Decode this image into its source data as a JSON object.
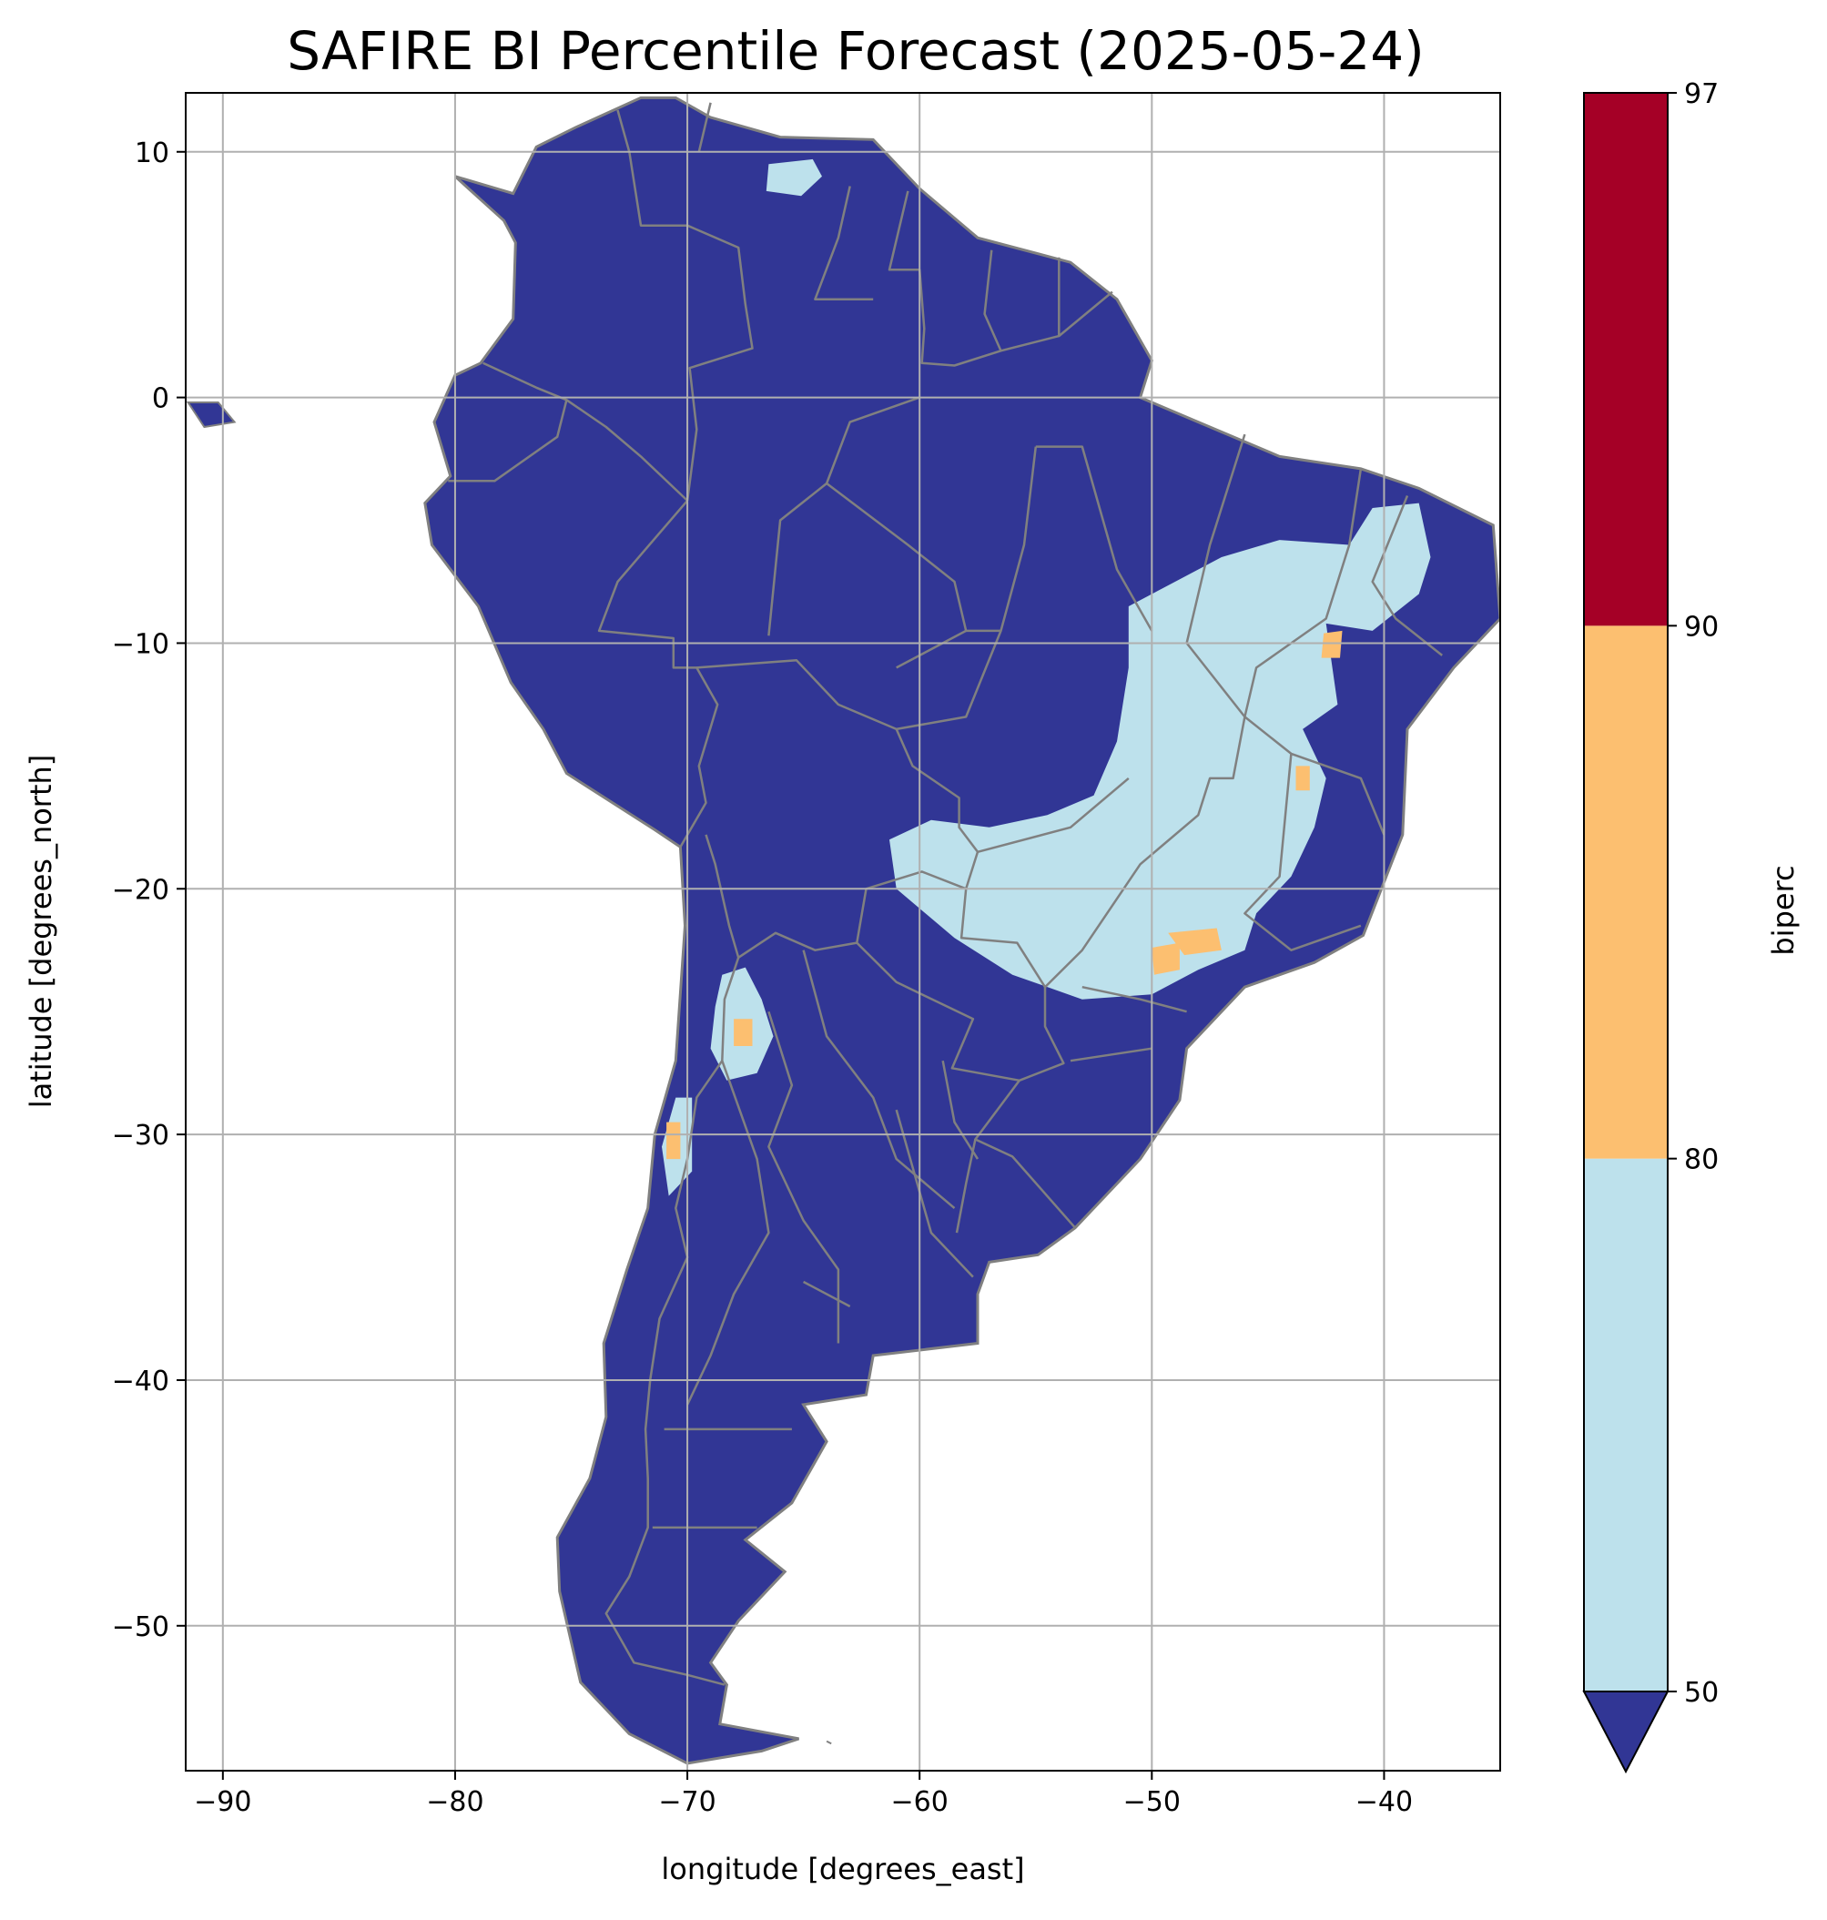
{
  "title": "SAFIRE BI Percentile Forecast (2025-05-24)",
  "x_axis": {
    "label": "longitude [degrees_east]",
    "ticks": [
      -90,
      -80,
      -70,
      -60,
      -50,
      -40
    ],
    "tick_labels": [
      "−90",
      "−80",
      "−70",
      "−60",
      "−50",
      "−40"
    ],
    "range": [
      -91.6,
      -35.0
    ]
  },
  "y_axis": {
    "label": "latitude [degrees_north]",
    "ticks": [
      10,
      0,
      -10,
      -20,
      -30,
      -40,
      -50
    ],
    "tick_labels": [
      "10",
      "0",
      "−10",
      "−20",
      "−30",
      "−40",
      "−50"
    ],
    "range": [
      -55.9,
      12.4
    ]
  },
  "grid": true,
  "colorbar": {
    "label": "biperc",
    "placement": "right",
    "extend": "min",
    "bins": [
      {
        "from": 50,
        "to": 80,
        "color": "#bde1ec"
      },
      {
        "from": 80,
        "to": 90,
        "color": "#fcbf70"
      },
      {
        "from": 90,
        "to": 97,
        "color": "#a50026"
      }
    ],
    "under_color": "#313695",
    "tick_labels": [
      "50",
      "80",
      "90",
      "97"
    ]
  },
  "colors": {
    "land_base": "#313695",
    "border": "#808080",
    "grid": "#b0b0b0"
  },
  "regions": {
    "continent": [
      [
        -80.0,
        9.0
      ],
      [
        -77.5,
        8.3
      ],
      [
        -76.5,
        10.2
      ],
      [
        -74.8,
        11.0
      ],
      [
        -72.0,
        12.2
      ],
      [
        -70.5,
        12.2
      ],
      [
        -69.0,
        11.4
      ],
      [
        -66.0,
        10.6
      ],
      [
        -62.0,
        10.5
      ],
      [
        -60.0,
        8.5
      ],
      [
        -57.5,
        6.5
      ],
      [
        -53.5,
        5.5
      ],
      [
        -51.5,
        4.0
      ],
      [
        -50.0,
        1.5
      ],
      [
        -50.5,
        0.0
      ],
      [
        -48.0,
        -1.0
      ],
      [
        -44.5,
        -2.4
      ],
      [
        -41.0,
        -2.9
      ],
      [
        -38.5,
        -3.7
      ],
      [
        -35.3,
        -5.2
      ],
      [
        -35.0,
        -9.0
      ],
      [
        -37.0,
        -11.0
      ],
      [
        -39.0,
        -13.5
      ],
      [
        -39.2,
        -17.8
      ],
      [
        -40.9,
        -21.9
      ],
      [
        -43.0,
        -23.0
      ],
      [
        -46.0,
        -24.0
      ],
      [
        -48.5,
        -26.5
      ],
      [
        -48.8,
        -28.6
      ],
      [
        -50.5,
        -31.0
      ],
      [
        -53.3,
        -33.8
      ],
      [
        -54.9,
        -34.9
      ],
      [
        -57.0,
        -35.2
      ],
      [
        -57.5,
        -36.5
      ],
      [
        -57.5,
        -38.5
      ],
      [
        -62.0,
        -39.0
      ],
      [
        -62.3,
        -40.6
      ],
      [
        -65.0,
        -41.0
      ],
      [
        -64.0,
        -42.5
      ],
      [
        -65.5,
        -45.0
      ],
      [
        -67.5,
        -46.5
      ],
      [
        -65.8,
        -47.8
      ],
      [
        -67.8,
        -49.8
      ],
      [
        -69.0,
        -51.5
      ],
      [
        -68.3,
        -52.4
      ],
      [
        -68.6,
        -54.0
      ],
      [
        -65.2,
        -54.6
      ],
      [
        -66.8,
        -55.1
      ],
      [
        -70.0,
        -55.6
      ],
      [
        -72.5,
        -54.4
      ],
      [
        -74.6,
        -52.3
      ],
      [
        -75.5,
        -48.6
      ],
      [
        -75.6,
        -46.4
      ],
      [
        -74.2,
        -44.0
      ],
      [
        -73.5,
        -41.5
      ],
      [
        -73.6,
        -38.5
      ],
      [
        -72.6,
        -35.5
      ],
      [
        -71.7,
        -33.0
      ],
      [
        -71.4,
        -30.0
      ],
      [
        -70.5,
        -27.0
      ],
      [
        -70.1,
        -21.5
      ],
      [
        -70.3,
        -18.3
      ],
      [
        -71.4,
        -17.6
      ],
      [
        -75.2,
        -15.3
      ],
      [
        -76.2,
        -13.5
      ],
      [
        -77.6,
        -11.6
      ],
      [
        -79.0,
        -8.5
      ],
      [
        -81.0,
        -6.0
      ],
      [
        -81.3,
        -4.3
      ],
      [
        -80.2,
        -3.2
      ],
      [
        -80.9,
        -1.0
      ],
      [
        -80.0,
        0.9
      ],
      [
        -78.9,
        1.4
      ],
      [
        -77.5,
        3.2
      ],
      [
        -77.4,
        6.3
      ],
      [
        -77.9,
        7.2
      ]
    ],
    "light_patches": [
      [
        [
          -66.5,
          9.5
        ],
        [
          -64.6,
          9.7
        ],
        [
          -64.2,
          9.0
        ],
        [
          -65.1,
          8.2
        ],
        [
          -66.6,
          8.4
        ]
      ],
      [
        [
          -51.0,
          -8.5
        ],
        [
          -47.0,
          -6.5
        ],
        [
          -44.5,
          -5.8
        ],
        [
          -41.5,
          -6.0
        ],
        [
          -40.5,
          -4.5
        ],
        [
          -38.5,
          -4.3
        ],
        [
          -38.0,
          -6.5
        ],
        [
          -38.5,
          -8.0
        ],
        [
          -40.5,
          -9.5
        ],
        [
          -42.5,
          -9.2
        ],
        [
          -42.0,
          -12.5
        ],
        [
          -43.5,
          -13.5
        ],
        [
          -42.5,
          -15.5
        ],
        [
          -43.0,
          -17.5
        ],
        [
          -44.0,
          -19.5
        ],
        [
          -45.5,
          -21.0
        ],
        [
          -46.0,
          -22.5
        ],
        [
          -48.0,
          -23.3
        ],
        [
          -50.0,
          -24.3
        ],
        [
          -53.0,
          -24.5
        ],
        [
          -56.0,
          -23.5
        ],
        [
          -58.5,
          -22.0
        ],
        [
          -61.0,
          -20.0
        ],
        [
          -61.3,
          -18.0
        ],
        [
          -59.5,
          -17.2
        ],
        [
          -57.0,
          -17.5
        ],
        [
          -54.5,
          -17.0
        ],
        [
          -52.5,
          -16.2
        ],
        [
          -51.5,
          -14.0
        ],
        [
          -51.0,
          -11.0
        ]
      ],
      [
        [
          -68.5,
          -23.5
        ],
        [
          -67.5,
          -23.2
        ],
        [
          -66.8,
          -24.5
        ],
        [
          -66.3,
          -26.0
        ],
        [
          -67.0,
          -27.5
        ],
        [
          -68.3,
          -27.8
        ],
        [
          -69.0,
          -26.5
        ],
        [
          -68.8,
          -24.8
        ]
      ],
      [
        [
          -70.5,
          -28.5
        ],
        [
          -69.8,
          -28.5
        ],
        [
          -69.8,
          -31.5
        ],
        [
          -70.8,
          -32.5
        ],
        [
          -71.1,
          -30.5
        ]
      ]
    ],
    "orange_patches": [
      [
        [
          -49.3,
          -21.8
        ],
        [
          -47.2,
          -21.6
        ],
        [
          -47.0,
          -22.5
        ],
        [
          -48.6,
          -22.7
        ]
      ],
      [
        [
          -50.0,
          -22.4
        ],
        [
          -48.8,
          -22.2
        ],
        [
          -48.8,
          -23.3
        ],
        [
          -49.9,
          -23.5
        ]
      ],
      [
        [
          -42.6,
          -9.6
        ],
        [
          -41.8,
          -9.5
        ],
        [
          -41.9,
          -10.6
        ],
        [
          -42.7,
          -10.6
        ]
      ],
      [
        [
          -43.8,
          -15.0
        ],
        [
          -43.2,
          -15.0
        ],
        [
          -43.2,
          -16.0
        ],
        [
          -43.8,
          -16.0
        ]
      ],
      [
        [
          -68.0,
          -25.3
        ],
        [
          -67.2,
          -25.3
        ],
        [
          -67.2,
          -26.4
        ],
        [
          -68.0,
          -26.4
        ]
      ],
      [
        [
          -70.9,
          -29.5
        ],
        [
          -70.3,
          -29.5
        ],
        [
          -70.3,
          -31.0
        ],
        [
          -70.9,
          -31.0
        ]
      ]
    ],
    "borders": [
      [
        [
          -73.0,
          11.7
        ],
        [
          -72.5,
          10.0
        ],
        [
          -72.0,
          7.0
        ],
        [
          -70.0,
          7.0
        ],
        [
          -67.8,
          6.1
        ],
        [
          -67.5,
          3.8
        ],
        [
          -67.2,
          2.0
        ],
        [
          -69.9,
          1.2
        ],
        [
          -69.6,
          -1.3
        ],
        [
          -70.0,
          -4.2
        ]
      ],
      [
        [
          -60.5,
          8.4
        ],
        [
          -61.3,
          5.2
        ],
        [
          -60.0,
          5.2
        ],
        [
          -59.8,
          2.8
        ],
        [
          -59.9,
          1.4
        ],
        [
          -58.5,
          1.3
        ],
        [
          -56.5,
          1.9
        ],
        [
          -54.0,
          2.5
        ],
        [
          -51.7,
          4.3
        ]
      ],
      [
        [
          -56.9,
          6.0
        ],
        [
          -57.2,
          3.4
        ],
        [
          -56.5,
          1.9
        ]
      ],
      [
        [
          -54.0,
          5.7
        ],
        [
          -54.0,
          2.5
        ]
      ],
      [
        [
          -70.0,
          -4.2
        ],
        [
          -73.0,
          -7.5
        ],
        [
          -73.8,
          -9.5
        ],
        [
          -70.6,
          -9.8
        ],
        [
          -70.6,
          -11.0
        ],
        [
          -69.6,
          -11.0
        ],
        [
          -68.7,
          -12.5
        ],
        [
          -69.5,
          -15.0
        ],
        [
          -69.2,
          -16.5
        ],
        [
          -70.3,
          -18.3
        ]
      ],
      [
        [
          -69.6,
          -11.0
        ],
        [
          -65.3,
          -10.7
        ],
        [
          -63.5,
          -12.5
        ],
        [
          -61.0,
          -13.5
        ],
        [
          -60.3,
          -15.0
        ],
        [
          -58.3,
          -16.3
        ],
        [
          -58.3,
          -17.5
        ],
        [
          -57.5,
          -18.5
        ],
        [
          -58.0,
          -20.0
        ]
      ],
      [
        [
          -58.0,
          -20.0
        ],
        [
          -59.9,
          -19.3
        ],
        [
          -62.3,
          -20.0
        ],
        [
          -62.7,
          -22.2
        ],
        [
          -64.5,
          -22.5
        ],
        [
          -66.2,
          -21.8
        ],
        [
          -67.8,
          -22.8
        ],
        [
          -68.2,
          -21.5
        ],
        [
          -68.8,
          -19.0
        ],
        [
          -69.2,
          -17.8
        ]
      ],
      [
        [
          -58.0,
          -20.0
        ],
        [
          -58.2,
          -22.0
        ],
        [
          -55.8,
          -22.2
        ],
        [
          -54.6,
          -24.0
        ],
        [
          -54.6,
          -25.6
        ],
        [
          -53.8,
          -27.1
        ],
        [
          -55.7,
          -27.8
        ],
        [
          -57.6,
          -30.2
        ],
        [
          -56.0,
          -30.9
        ],
        [
          -53.3,
          -33.8
        ]
      ],
      [
        [
          -57.6,
          -30.2
        ],
        [
          -58.0,
          -32.0
        ],
        [
          -58.4,
          -34.0
        ]
      ],
      [
        [
          -62.7,
          -22.2
        ],
        [
          -61.0,
          -23.8
        ],
        [
          -57.7,
          -25.3
        ],
        [
          -58.6,
          -27.3
        ],
        [
          -55.7,
          -27.8
        ]
      ],
      [
        [
          -67.8,
          -22.8
        ],
        [
          -68.4,
          -24.5
        ],
        [
          -68.5,
          -27.0
        ],
        [
          -69.6,
          -28.5
        ],
        [
          -70.0,
          -31.0
        ],
        [
          -70.5,
          -33.0
        ],
        [
          -70.0,
          -35.0
        ],
        [
          -71.2,
          -37.5
        ],
        [
          -71.6,
          -40.0
        ],
        [
          -71.8,
          -42.0
        ],
        [
          -71.7,
          -44.0
        ],
        [
          -71.7,
          -46.0
        ],
        [
          -72.5,
          -48.0
        ],
        [
          -73.5,
          -49.5
        ],
        [
          -72.3,
          -51.5
        ],
        [
          -70.0,
          -52.0
        ],
        [
          -68.4,
          -52.4
        ]
      ],
      [
        [
          -75.2,
          -0.1
        ],
        [
          -73.5,
          -1.2
        ],
        [
          -72.0,
          -2.4
        ],
        [
          -70.0,
          -4.2
        ]
      ],
      [
        [
          -78.8,
          1.4
        ],
        [
          -76.5,
          0.4
        ],
        [
          -75.2,
          -0.1
        ],
        [
          -75.6,
          -1.6
        ],
        [
          -78.3,
          -3.4
        ],
        [
          -80.3,
          -3.4
        ]
      ],
      [
        [
          -69.0,
          12.0
        ],
        [
          -69.5,
          10.0
        ]
      ],
      [
        [
          -63.0,
          8.6
        ],
        [
          -63.5,
          6.5
        ],
        [
          -64.5,
          4.0
        ],
        [
          -62.0,
          4.0
        ]
      ],
      [
        [
          -60.0,
          0.0
        ],
        [
          -63.0,
          -1.0
        ],
        [
          -64.0,
          -3.5
        ],
        [
          -60.5,
          -6.0
        ],
        [
          -58.5,
          -7.5
        ],
        [
          -58.0,
          -9.5
        ],
        [
          -61.0,
          -11.0
        ]
      ],
      [
        [
          -66.5,
          -9.7
        ],
        [
          -66.0,
          -5.0
        ],
        [
          -64.0,
          -3.5
        ]
      ],
      [
        [
          -55.0,
          -2.0
        ],
        [
          -55.5,
          -6.0
        ],
        [
          -56.5,
          -9.5
        ],
        [
          -58.0,
          -9.5
        ]
      ],
      [
        [
          -50.0,
          -9.5
        ],
        [
          -51.5,
          -7.0
        ],
        [
          -53.0,
          -2.0
        ],
        [
          -55.0,
          -2.0
        ]
      ],
      [
        [
          -46.0,
          -1.5
        ],
        [
          -47.5,
          -6.0
        ],
        [
          -48.5,
          -10.0
        ],
        [
          -46.0,
          -13.0
        ],
        [
          -46.5,
          -15.5
        ],
        [
          -47.5,
          -15.5
        ],
        [
          -48.0,
          -17.0
        ],
        [
          -50.5,
          -19.0
        ],
        [
          -53.0,
          -22.5
        ],
        [
          -54.6,
          -24.0
        ]
      ],
      [
        [
          -51.0,
          -15.5
        ],
        [
          -53.5,
          -17.5
        ],
        [
          -57.5,
          -18.5
        ]
      ],
      [
        [
          -56.5,
          -9.5
        ],
        [
          -58.0,
          -13.0
        ],
        [
          -61.0,
          -13.5
        ]
      ],
      [
        [
          -41.0,
          -2.9
        ],
        [
          -41.5,
          -6.0
        ],
        [
          -42.5,
          -9.0
        ],
        [
          -45.5,
          -11.0
        ],
        [
          -46.0,
          -13.0
        ]
      ],
      [
        [
          -39.0,
          -4.0
        ],
        [
          -40.5,
          -7.5
        ],
        [
          -39.5,
          -9.0
        ],
        [
          -37.5,
          -10.5
        ]
      ],
      [
        [
          -46.0,
          -13.0
        ],
        [
          -44.0,
          -14.5
        ],
        [
          -41.0,
          -15.5
        ],
        [
          -40.0,
          -17.8
        ]
      ],
      [
        [
          -44.0,
          -14.5
        ],
        [
          -44.5,
          -19.5
        ],
        [
          -46.0,
          -21.0
        ],
        [
          -44.0,
          -22.5
        ],
        [
          -41.0,
          -21.5
        ]
      ],
      [
        [
          -48.5,
          -25.0
        ],
        [
          -50.5,
          -24.5
        ],
        [
          -53.0,
          -24.0
        ]
      ],
      [
        [
          -50.0,
          -26.5
        ],
        [
          -53.5,
          -27.0
        ]
      ],
      [
        [
          -65.0,
          -22.5
        ],
        [
          -64.0,
          -26.0
        ],
        [
          -62.0,
          -28.5
        ],
        [
          -61.0,
          -31.0
        ],
        [
          -58.5,
          -33.0
        ]
      ],
      [
        [
          -66.5,
          -25.0
        ],
        [
          -65.5,
          -28.0
        ],
        [
          -66.5,
          -30.5
        ],
        [
          -65.0,
          -33.5
        ],
        [
          -63.5,
          -35.5
        ],
        [
          -63.5,
          -38.5
        ]
      ],
      [
        [
          -68.5,
          -27.0
        ],
        [
          -67.0,
          -31.0
        ],
        [
          -66.5,
          -34.0
        ],
        [
          -68.0,
          -36.5
        ],
        [
          -69.0,
          -39.0
        ],
        [
          -70.0,
          -41.0
        ]
      ],
      [
        [
          -65.0,
          -36.0
        ],
        [
          -63.0,
          -37.0
        ]
      ],
      [
        [
          -71.0,
          -42.0
        ],
        [
          -65.5,
          -42.0
        ]
      ],
      [
        [
          -71.5,
          -46.0
        ],
        [
          -67.0,
          -46.0
        ]
      ],
      [
        [
          -59.0,
          -27.0
        ],
        [
          -58.5,
          -29.5
        ],
        [
          -57.5,
          -31.0
        ]
      ],
      [
        [
          -61.0,
          -29.0
        ],
        [
          -59.5,
          -34.0
        ],
        [
          -57.7,
          -35.8
        ]
      ]
    ],
    "islands": [
      [
        [
          -91.5,
          -0.2
        ],
        [
          -90.2,
          -0.2
        ],
        [
          -89.5,
          -1.0
        ],
        [
          -90.8,
          -1.2
        ]
      ],
      [
        [
          -64.0,
          -54.7
        ],
        [
          -63.8,
          -54.8
        ]
      ]
    ]
  }
}
